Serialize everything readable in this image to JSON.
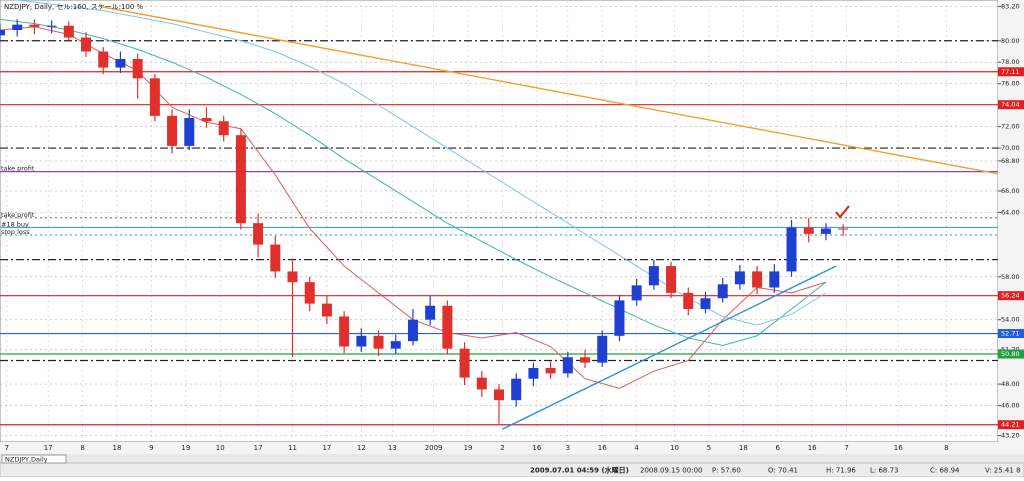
{
  "chart_data": {
    "type": "candlestick",
    "title": "NZDJPY, Daily, セル:160, スケール:100 %",
    "tab": "NZDJPY,Daily",
    "status": [
      "2009.07.01 04:59 (水曜日)",
      "2008.09.15 00:00",
      "P: 57.60",
      "O: 70.41",
      "H: 71.96",
      "L: 68.73",
      "C: 68.94",
      "V: 25.41 8"
    ],
    "up_color": "#1f3fd0",
    "down_color": "#e0302c",
    "xlim": [
      0,
      290
    ],
    "ylim": [
      42.6,
      83.8
    ],
    "xticks": [
      {
        "value": 2,
        "label": "7"
      },
      {
        "value": 14,
        "label": "17"
      },
      {
        "value": 24,
        "label": "8"
      },
      {
        "value": 34,
        "label": "18"
      },
      {
        "value": 44,
        "label": "9"
      },
      {
        "value": 54,
        "label": "19"
      },
      {
        "value": 64,
        "label": "10"
      },
      {
        "value": 75,
        "label": "17"
      },
      {
        "value": 85,
        "label": "11"
      },
      {
        "value": 95,
        "label": "17"
      },
      {
        "value": 105,
        "label": "12"
      },
      {
        "value": 114,
        "label": "13"
      },
      {
        "value": 126,
        "label": "2009"
      },
      {
        "value": 136,
        "label": "19"
      },
      {
        "value": 146,
        "label": "2"
      },
      {
        "value": 156,
        "label": "16"
      },
      {
        "value": 165,
        "label": "3"
      },
      {
        "value": 175,
        "label": "16"
      },
      {
        "value": 185,
        "label": "4"
      },
      {
        "value": 196,
        "label": "10"
      },
      {
        "value": 206,
        "label": "5"
      },
      {
        "value": 216,
        "label": "18"
      },
      {
        "value": 226,
        "label": "6"
      },
      {
        "value": 236,
        "label": "16"
      },
      {
        "value": 246,
        "label": "7"
      },
      {
        "value": 261,
        "label": "16"
      },
      {
        "value": 275,
        "label": "8"
      }
    ],
    "yticks": [
      {
        "value": 83.2,
        "label": "83.20"
      },
      {
        "value": 80,
        "label": "80.00"
      },
      {
        "value": 78,
        "label": "78.00"
      },
      {
        "value": 76,
        "label": "76.00"
      },
      {
        "value": 72,
        "label": "72.00"
      },
      {
        "value": 70,
        "label": "70.00"
      },
      {
        "value": 68.8,
        "label": "68.80"
      },
      {
        "value": 66,
        "label": "66.00"
      },
      {
        "value": 64,
        "label": "64.00"
      },
      {
        "value": 58,
        "label": "58.00"
      },
      {
        "value": 54,
        "label": "54.00"
      },
      {
        "value": 51.2,
        "label": "51.20"
      },
      {
        "value": 48,
        "label": "48.00"
      },
      {
        "value": 46,
        "label": "46.00"
      },
      {
        "value": 43.2,
        "label": "43.20"
      }
    ],
    "x": [
      0,
      5,
      10,
      15,
      20,
      25,
      30,
      35,
      40,
      45,
      50,
      55,
      60,
      65,
      70,
      75,
      80,
      85,
      90,
      95,
      100,
      105,
      110,
      115,
      120,
      125,
      130,
      135,
      140,
      145,
      150,
      155,
      160,
      165,
      170,
      175,
      180,
      185,
      190,
      195,
      200,
      205,
      210,
      215,
      220,
      225,
      230,
      235,
      240,
      245
    ],
    "open": [
      80.5,
      81.0,
      81.5,
      81.3,
      81.4,
      80.3,
      79.0,
      77.5,
      78.3,
      76.5,
      73.0,
      70.2,
      72.8,
      72.5,
      71.2,
      63.0,
      61.0,
      58.5,
      57.5,
      55.5,
      54.3,
      51.5,
      52.5,
      51.3,
      52.0,
      54.0,
      55.3,
      51.3,
      48.6,
      47.5,
      46.5,
      48.5,
      49.5,
      49.0,
      50.5,
      50.0,
      52.5,
      55.8,
      57.2,
      59.0,
      56.5,
      55.0,
      56.0,
      57.3,
      58.5,
      57.0,
      58.5,
      62.6,
      62.0,
      62.5
    ],
    "high": [
      81.6,
      82.0,
      82.0,
      81.9,
      81.8,
      80.8,
      79.4,
      79.0,
      78.8,
      76.9,
      73.6,
      73.6,
      73.8,
      73.0,
      71.8,
      63.9,
      61.8,
      59.7,
      58.0,
      56.2,
      54.8,
      53.2,
      53.0,
      52.6,
      55.0,
      56.2,
      55.8,
      51.9,
      49.2,
      48.0,
      49.0,
      50.0,
      50.1,
      51.0,
      51.2,
      53.0,
      56.3,
      57.8,
      59.6,
      59.4,
      57.0,
      56.6,
      57.9,
      59.1,
      59.0,
      59.2,
      63.3,
      63.5,
      63.0,
      62.9
    ],
    "low": [
      79.9,
      80.4,
      80.6,
      80.7,
      79.9,
      78.5,
      76.9,
      77.0,
      74.6,
      72.5,
      69.5,
      69.8,
      71.9,
      70.6,
      62.4,
      59.8,
      57.9,
      50.5,
      54.8,
      53.6,
      50.9,
      51.0,
      50.6,
      50.8,
      51.6,
      53.5,
      50.8,
      47.9,
      46.8,
      44.3,
      45.9,
      47.8,
      48.5,
      48.6,
      49.5,
      49.6,
      52.0,
      55.3,
      56.8,
      56.0,
      54.4,
      54.6,
      55.6,
      56.8,
      56.4,
      56.5,
      58.0,
      61.2,
      61.4,
      61.8
    ],
    "close": [
      81.0,
      81.5,
      81.3,
      81.4,
      80.3,
      79.0,
      77.5,
      78.3,
      76.5,
      73.0,
      70.2,
      72.8,
      72.5,
      71.2,
      63.0,
      61.0,
      58.5,
      57.5,
      55.5,
      54.3,
      51.5,
      52.5,
      51.3,
      52.0,
      54.0,
      55.3,
      51.3,
      48.6,
      47.5,
      46.5,
      48.5,
      49.5,
      49.0,
      50.5,
      50.0,
      52.5,
      55.8,
      57.2,
      59.0,
      56.5,
      55.0,
      56.0,
      57.3,
      58.5,
      57.0,
      58.5,
      62.6,
      62.0,
      62.5,
      62.4
    ],
    "ma_x": [
      0,
      10,
      20,
      30,
      40,
      50,
      60,
      70,
      80,
      90,
      100,
      110,
      120,
      130,
      140,
      150,
      160,
      170,
      180,
      190,
      200,
      210,
      220,
      230,
      240
    ],
    "moving_averages": [
      {
        "color": "#e05a5a",
        "values": [
          81.0,
          81.3,
          80.6,
          78.8,
          77.2,
          73.8,
          72.4,
          71.8,
          67.5,
          62.5,
          59.0,
          56.5,
          54.0,
          52.8,
          52.3,
          52.8,
          51.5,
          48.5,
          47.6,
          49.2,
          50.2,
          54.0,
          57.0,
          56.5,
          57.5
        ]
      },
      {
        "color": "#3fb6a8",
        "values": [
          82.0,
          81.6,
          81.0,
          80.2,
          79.2,
          78.0,
          76.6,
          75.0,
          73.2,
          71.2,
          69.0,
          67.0,
          65.0,
          63.0,
          61.3,
          59.6,
          58.0,
          56.5,
          55.0,
          53.5,
          52.3,
          51.6,
          52.5,
          55.0,
          57.5
        ]
      },
      {
        "color": "#7fc3e8",
        "values": [
          84.0,
          83.6,
          83.2,
          82.8,
          82.2,
          81.6,
          80.8,
          80.0,
          79.0,
          77.6,
          76.0,
          74.0,
          72.0,
          70.0,
          68.0,
          66.0,
          64.0,
          62.0,
          60.0,
          58.0,
          56.0,
          54.3,
          53.5,
          54.5,
          56.5
        ]
      }
    ],
    "trendlines": [
      {
        "color": "#f0a030",
        "x": [
          29,
          290
        ],
        "y": [
          83.2,
          67.6
        ]
      },
      {
        "color": "#2f8fd8",
        "x": [
          146,
          243
        ],
        "y": [
          43.8,
          59.0
        ]
      }
    ],
    "hlines": [
      {
        "value": 80.0,
        "color": "#222222",
        "style": "dashdot"
      },
      {
        "value": 77.11,
        "color": "#e02020",
        "style": "solid",
        "axis_label": "77.11"
      },
      {
        "value": 74.04,
        "color": "#e02020",
        "style": "solid",
        "axis_label": "74.04"
      },
      {
        "value": 70.0,
        "color": "#222222",
        "style": "dashdot"
      },
      {
        "value": 67.8,
        "color": "#9040c0",
        "style": "solid",
        "text": "take profit"
      },
      {
        "value": 63.5,
        "color": "#888888",
        "style": "dotted",
        "text": "take profit"
      },
      {
        "value": 62.6,
        "color": "#3fa0e0",
        "style": "solid",
        "text": "#18 buy"
      },
      {
        "value": 61.9,
        "color": "#3fa0e0",
        "style": "dotted",
        "text": "stop loss"
      },
      {
        "value": 59.6,
        "color": "#222244",
        "style": "dashdot"
      },
      {
        "value": 56.24,
        "color": "#e02020",
        "style": "solid",
        "axis_label": "56.24"
      },
      {
        "value": 52.71,
        "color": "#2060e0",
        "style": "solid",
        "axis_label": "52.71"
      },
      {
        "value": 50.8,
        "color": "#20a040",
        "style": "solid",
        "axis_label": "50.80"
      },
      {
        "value": 50.2,
        "color": "#222222",
        "style": "dashdot"
      },
      {
        "value": 44.21,
        "color": "#e02020",
        "style": "solid",
        "axis_label": "44.21"
      }
    ]
  }
}
